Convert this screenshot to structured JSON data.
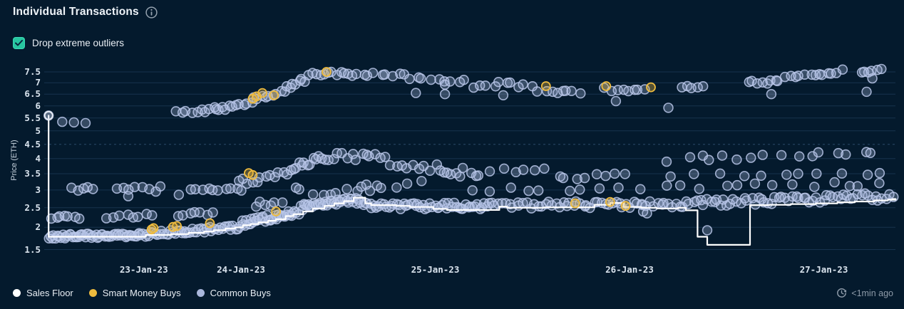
{
  "header": {
    "title": "Individual Transactions",
    "info_icon": "info-circle"
  },
  "controls": {
    "drop_outliers_label": "Drop extreme outliers",
    "drop_outliers_checked": true
  },
  "legend": {
    "items": [
      {
        "label": "Sales Floor",
        "color": "#ffffff"
      },
      {
        "label": "Smart Money Buys",
        "color": "#eebb3e"
      },
      {
        "label": "Common Buys",
        "color": "#a9b7dc"
      }
    ]
  },
  "status": {
    "updated": "<1min ago",
    "icon": "clock-refresh"
  },
  "chart_data": {
    "type": "scatter",
    "title": "Individual Transactions",
    "ylabel": "Price (ETH)",
    "y_scale": "sqrt",
    "ylim": [
      1.5,
      7.5
    ],
    "grid": "horizontal",
    "dashed_gridline_at": 4.5,
    "y_ticks": [
      {
        "v": 1.5,
        "label": "1.5"
      },
      {
        "v": 2,
        "label": "2"
      },
      {
        "v": 2.5,
        "label": "2.5"
      },
      {
        "v": 3,
        "label": "3"
      },
      {
        "v": 3.5,
        "label": "3.5"
      },
      {
        "v": 4,
        "label": "4"
      },
      {
        "v": 4.5,
        "label": "4.5"
      },
      {
        "v": 5,
        "label": "5"
      },
      {
        "v": 5.5,
        "label": "5.5"
      },
      {
        "v": 6,
        "label": "6"
      },
      {
        "v": 6.5,
        "label": "6.5"
      },
      {
        "v": 7,
        "label": "7"
      },
      {
        "v": 7.5,
        "label": "7.5"
      }
    ],
    "x_unit": "days since 23-Jan-23 00:00",
    "xlim": [
      -0.013,
      4.37
    ],
    "x_ticks": [
      {
        "label": "23-Jan-23",
        "day": 0.5
      },
      {
        "label": "24-Jan-23",
        "day": 1.0
      },
      {
        "label": "25-Jan-23",
        "day": 2.0
      },
      {
        "label": "26-Jan-23",
        "day": 3.0
      },
      {
        "label": "27-Jan-23",
        "day": 4.0
      }
    ],
    "series": [
      {
        "name": "Sales Floor",
        "type": "step-line",
        "color": "#ffffff",
        "start_marker": [
          0.01,
          5.6
        ],
        "steps": [
          [
            0.01,
            1.78
          ],
          [
            0.51,
            1.82
          ],
          [
            0.64,
            1.84
          ],
          [
            0.73,
            1.87
          ],
          [
            0.81,
            1.9
          ],
          [
            0.86,
            1.93
          ],
          [
            0.92,
            1.97
          ],
          [
            0.97,
            2.0
          ],
          [
            1.01,
            2.05
          ],
          [
            1.05,
            2.08
          ],
          [
            1.09,
            2.12
          ],
          [
            1.14,
            2.16
          ],
          [
            1.18,
            2.2
          ],
          [
            1.23,
            2.28
          ],
          [
            1.27,
            2.33
          ],
          [
            1.32,
            2.4
          ],
          [
            1.37,
            2.48
          ],
          [
            1.43,
            2.55
          ],
          [
            1.48,
            2.62
          ],
          [
            1.53,
            2.68
          ],
          [
            1.58,
            2.78
          ],
          [
            1.64,
            2.62
          ],
          [
            1.67,
            2.57
          ],
          [
            1.8,
            2.55
          ],
          [
            1.87,
            2.52
          ],
          [
            1.99,
            2.47
          ],
          [
            2.06,
            2.44
          ],
          [
            2.31,
            2.44
          ],
          [
            2.33,
            2.53
          ],
          [
            2.37,
            2.5
          ],
          [
            2.56,
            2.51
          ],
          [
            2.82,
            2.58
          ],
          [
            2.9,
            2.63
          ],
          [
            2.97,
            2.52
          ],
          [
            3.06,
            2.5
          ],
          [
            3.14,
            2.48
          ],
          [
            3.25,
            2.5
          ],
          [
            3.29,
            2.43
          ],
          [
            3.35,
            1.78
          ],
          [
            3.4,
            1.6
          ],
          [
            3.6,
            1.6
          ],
          [
            3.62,
            2.57
          ],
          [
            3.72,
            2.58
          ],
          [
            3.83,
            2.6
          ],
          [
            3.96,
            2.62
          ],
          [
            4.07,
            2.65
          ],
          [
            4.16,
            2.67
          ],
          [
            4.26,
            2.7
          ],
          [
            4.33,
            2.72
          ],
          [
            4.37,
            2.74
          ]
        ]
      },
      {
        "name": "Smart Money Buys",
        "type": "scatter",
        "color": "#eebb3e",
        "points": [
          [
            0.54,
            1.95
          ],
          [
            0.55,
            1.98
          ],
          [
            0.65,
            2.01
          ],
          [
            0.67,
            2.03
          ],
          [
            0.84,
            2.1
          ],
          [
            1.18,
            2.4
          ],
          [
            1.04,
            3.52
          ],
          [
            1.06,
            3.46
          ],
          [
            1.06,
            6.3
          ],
          [
            1.08,
            6.4
          ],
          [
            1.11,
            6.55
          ],
          [
            1.17,
            6.45
          ],
          [
            1.44,
            7.5
          ],
          [
            2.57,
            6.85
          ],
          [
            2.88,
            6.85
          ],
          [
            3.11,
            6.8
          ],
          [
            2.72,
            2.62
          ],
          [
            2.9,
            2.66
          ],
          [
            2.98,
            2.55
          ]
        ]
      },
      {
        "name": "Common Buys",
        "type": "scatter",
        "color": "#a9b7dc",
        "points": [
          [
            0.01,
            5.6
          ],
          [
            0.08,
            5.35
          ],
          [
            0.14,
            5.33
          ],
          [
            0.2,
            5.3
          ],
          [
            0.42,
            2.82
          ],
          [
            0.68,
            2.86
          ],
          [
            0.99,
            3.28
          ],
          [
            1.01,
            3.34
          ],
          [
            1.9,
            6.55
          ],
          [
            2.05,
            6.5
          ],
          [
            2.05,
            6.92
          ],
          [
            2.35,
            6.45
          ],
          [
            2.63,
            6.55
          ],
          [
            2.93,
            6.2
          ],
          [
            3.2,
            5.92
          ],
          [
            3.4,
            1.93
          ],
          [
            3.07,
            2.4
          ],
          [
            3.09,
            2.35
          ],
          [
            3.73,
            6.5
          ],
          [
            4.22,
            6.6
          ],
          [
            4.25,
            7.2
          ]
        ],
        "clusters": [
          {
            "x0": 0.005,
            "x1": 0.5,
            "p0": 1.78,
            "p1": 1.82,
            "spread": 0.1,
            "n": 55
          },
          {
            "x0": 0.5,
            "x1": 1.0,
            "p0": 1.84,
            "p1": 2.0,
            "spread": 0.12,
            "n": 45
          },
          {
            "x0": 1.0,
            "x1": 1.3,
            "p0": 2.1,
            "p1": 2.38,
            "spread": 0.16,
            "n": 35
          },
          {
            "x0": 1.3,
            "x1": 1.62,
            "p0": 2.5,
            "p1": 2.72,
            "spread": 0.18,
            "n": 35
          },
          {
            "x0": 1.62,
            "x1": 2.3,
            "p0": 2.55,
            "p1": 2.55,
            "spread": 0.18,
            "n": 55
          },
          {
            "x0": 2.3,
            "x1": 3.3,
            "p0": 2.55,
            "p1": 2.62,
            "spread": 0.2,
            "n": 55
          },
          {
            "x0": 3.3,
            "x1": 4.36,
            "p0": 2.62,
            "p1": 2.82,
            "spread": 0.22,
            "n": 60
          },
          {
            "x0": 0.02,
            "x1": 0.17,
            "p0": 2.24,
            "p1": 2.24,
            "spread": 0.12,
            "n": 7
          },
          {
            "x0": 0.3,
            "x1": 0.55,
            "p0": 2.26,
            "p1": 2.28,
            "spread": 0.12,
            "n": 8
          },
          {
            "x0": 0.67,
            "x1": 0.86,
            "p0": 2.32,
            "p1": 2.36,
            "spread": 0.1,
            "n": 7
          },
          {
            "x0": 0.12,
            "x1": 0.24,
            "p0": 3.02,
            "p1": 3.05,
            "spread": 0.1,
            "n": 5
          },
          {
            "x0": 0.35,
            "x1": 0.6,
            "p0": 2.98,
            "p1": 3.05,
            "spread": 0.18,
            "n": 8
          },
          {
            "x0": 0.73,
            "x1": 1.02,
            "p0": 3.0,
            "p1": 3.02,
            "spread": 0.08,
            "n": 10
          },
          {
            "x0": 1.02,
            "x1": 1.25,
            "p0": 3.15,
            "p1": 3.55,
            "spread": 0.2,
            "n": 10
          },
          {
            "x0": 1.25,
            "x1": 1.42,
            "p0": 3.6,
            "p1": 4.1,
            "spread": 0.25,
            "n": 12
          },
          {
            "x0": 1.42,
            "x1": 1.75,
            "p0": 4.0,
            "p1": 4.15,
            "spread": 0.3,
            "n": 14
          },
          {
            "x0": 1.75,
            "x1": 1.95,
            "p0": 3.85,
            "p1": 3.75,
            "spread": 0.25,
            "n": 7
          },
          {
            "x0": 1.95,
            "x1": 2.2,
            "p0": 3.7,
            "p1": 3.6,
            "spread": 0.25,
            "n": 7
          },
          {
            "x0": 1.06,
            "x1": 1.22,
            "p0": 2.6,
            "p1": 2.65,
            "spread": 0.15,
            "n": 6
          },
          {
            "x0": 1.25,
            "x1": 1.7,
            "p0": 2.95,
            "p1": 3.05,
            "spread": 0.3,
            "n": 10
          },
          {
            "x0": 1.6,
            "x1": 1.95,
            "p0": 3.1,
            "p1": 3.2,
            "spread": 0.2,
            "n": 6
          },
          {
            "x0": 2.0,
            "x1": 2.6,
            "p0": 3.5,
            "p1": 3.6,
            "spread": 0.25,
            "n": 11
          },
          {
            "x0": 2.6,
            "x1": 3.0,
            "p0": 3.4,
            "p1": 3.5,
            "spread": 0.2,
            "n": 8
          },
          {
            "x0": 2.1,
            "x1": 3.0,
            "p0": 3.0,
            "p1": 3.05,
            "spread": 0.12,
            "n": 9
          },
          {
            "x0": 3.05,
            "x1": 4.35,
            "p0": 3.05,
            "p1": 3.2,
            "spread": 0.15,
            "n": 14
          },
          {
            "x0": 3.2,
            "x1": 4.35,
            "p0": 3.45,
            "p1": 3.5,
            "spread": 0.12,
            "n": 11
          },
          {
            "x0": 3.18,
            "x1": 4.3,
            "p0": 4.0,
            "p1": 4.15,
            "spread": 0.25,
            "n": 16
          },
          {
            "x0": 0.66,
            "x1": 0.88,
            "p0": 5.7,
            "p1": 5.85,
            "spread": 0.15,
            "n": 9
          },
          {
            "x0": 0.86,
            "x1": 1.06,
            "p0": 5.85,
            "p1": 6.05,
            "spread": 0.25,
            "n": 11
          },
          {
            "x0": 1.06,
            "x1": 1.23,
            "p0": 6.3,
            "p1": 6.6,
            "spread": 0.2,
            "n": 9
          },
          {
            "x0": 1.23,
            "x1": 1.34,
            "p0": 6.8,
            "p1": 7.15,
            "spread": 0.2,
            "n": 7
          },
          {
            "x0": 1.34,
            "x1": 1.56,
            "p0": 7.35,
            "p1": 7.5,
            "spread": 0.2,
            "n": 11
          },
          {
            "x0": 1.56,
            "x1": 1.85,
            "p0": 7.35,
            "p1": 7.4,
            "spread": 0.2,
            "n": 10
          },
          {
            "x0": 1.85,
            "x1": 2.18,
            "p0": 7.25,
            "p1": 7.1,
            "spread": 0.25,
            "n": 9
          },
          {
            "x0": 2.18,
            "x1": 2.48,
            "p0": 6.9,
            "p1": 6.9,
            "spread": 0.3,
            "n": 9
          },
          {
            "x0": 2.48,
            "x1": 2.77,
            "p0": 6.7,
            "p1": 6.6,
            "spread": 0.3,
            "n": 8
          },
          {
            "x0": 2.85,
            "x1": 3.1,
            "p0": 6.7,
            "p1": 6.75,
            "spread": 0.2,
            "n": 8
          },
          {
            "x0": 3.25,
            "x1": 3.4,
            "p0": 6.75,
            "p1": 6.85,
            "spread": 0.15,
            "n": 5
          },
          {
            "x0": 3.6,
            "x1": 3.78,
            "p0": 7.0,
            "p1": 7.1,
            "spread": 0.2,
            "n": 8
          },
          {
            "x0": 3.78,
            "x1": 3.94,
            "p0": 7.25,
            "p1": 7.4,
            "spread": 0.15,
            "n": 6
          },
          {
            "x0": 3.94,
            "x1": 4.1,
            "p0": 7.35,
            "p1": 7.55,
            "spread": 0.15,
            "n": 7
          },
          {
            "x0": 4.18,
            "x1": 4.3,
            "p0": 7.5,
            "p1": 7.6,
            "spread": 0.15,
            "n": 6
          }
        ]
      }
    ]
  }
}
